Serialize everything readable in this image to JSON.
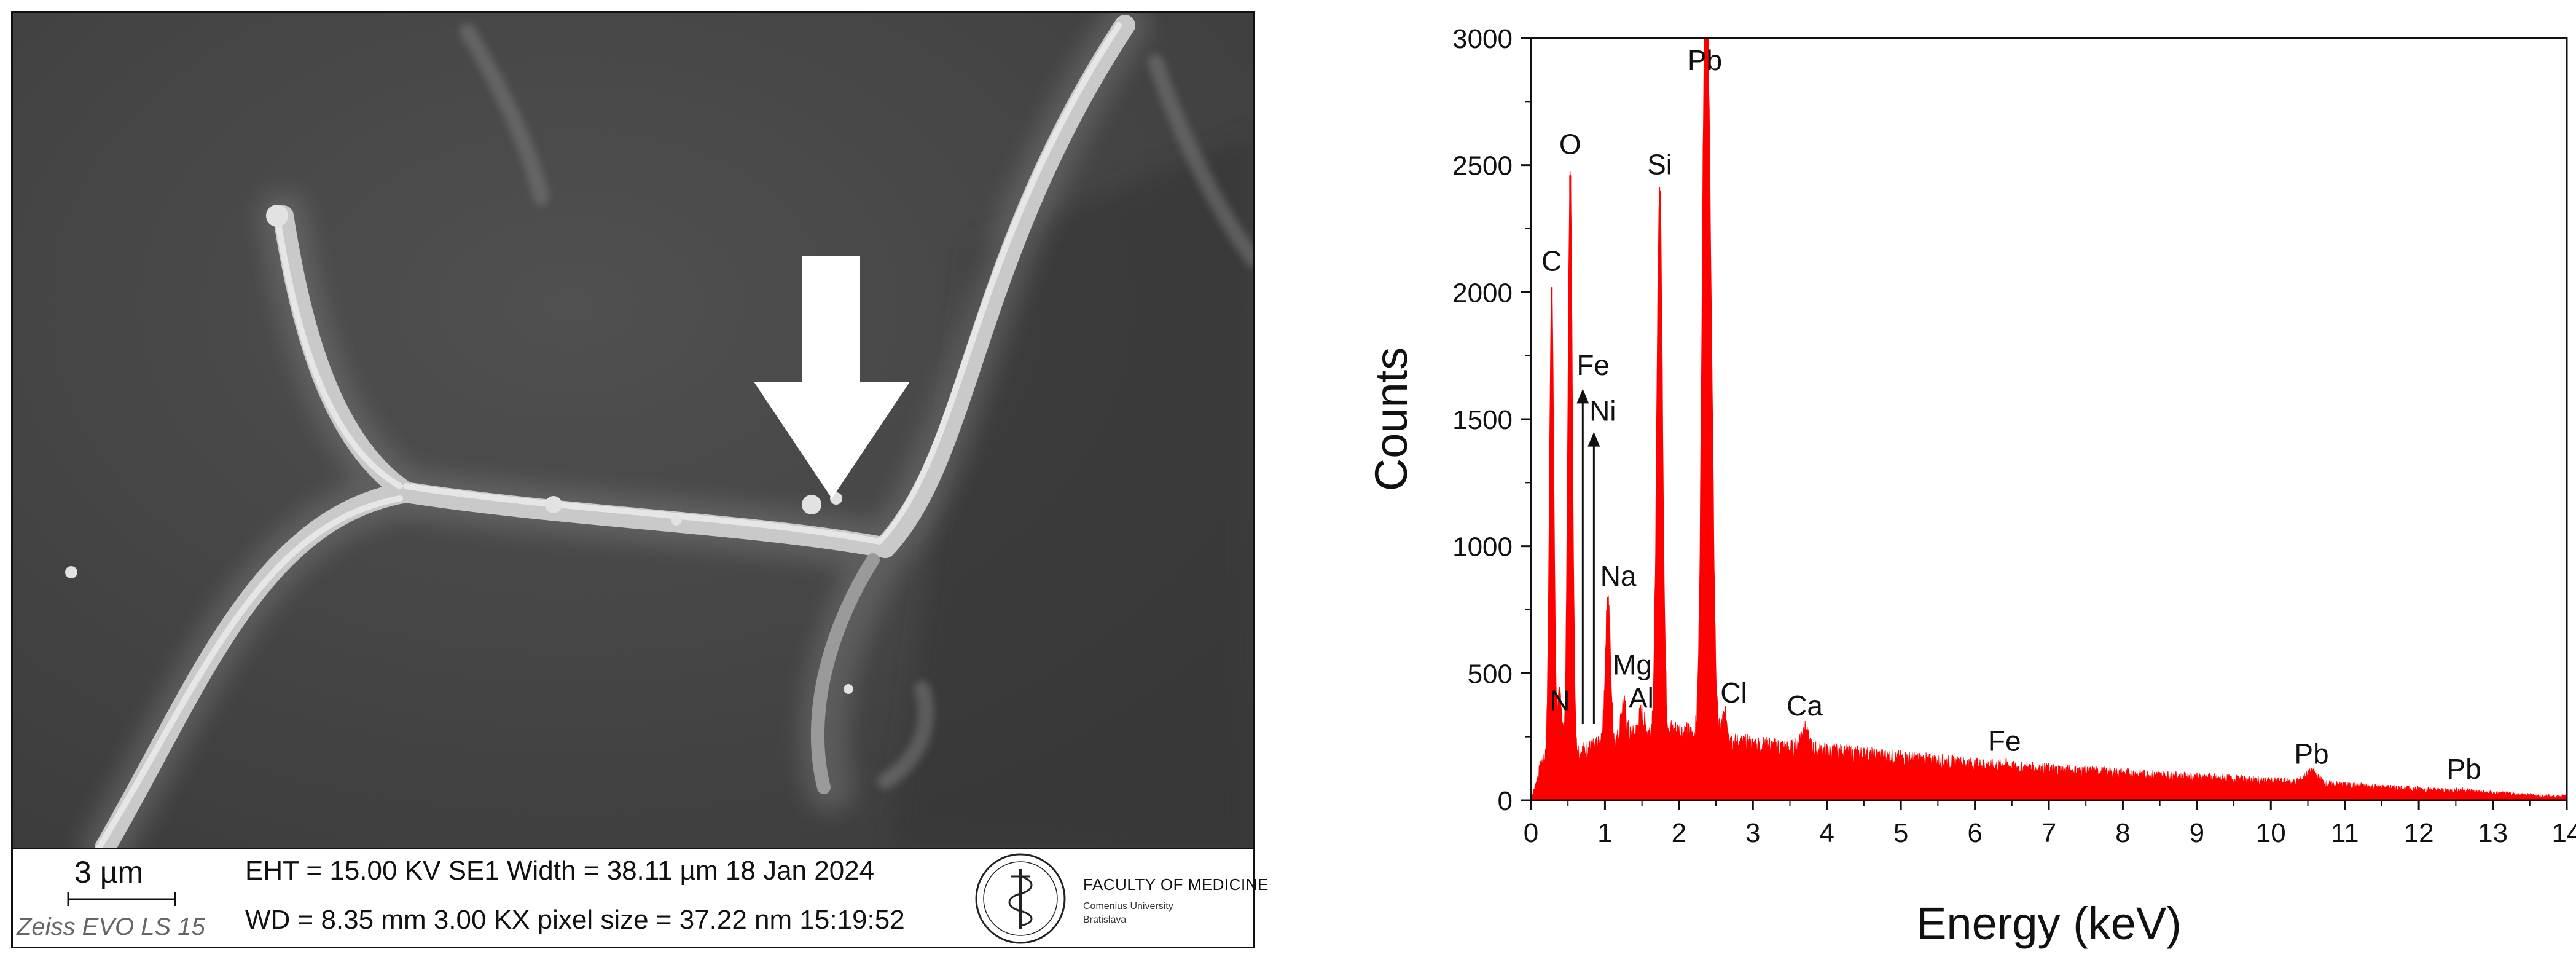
{
  "sem": {
    "scale_label": "3 µm",
    "instrument": "Zeiss EVO LS 15",
    "line1": "EHT = 15.00 KV   SE1  Width = 38.11 µm   18 Jan 2024",
    "line2": "WD = 8.35 mm 3.00 KX pixel size = 37.22 nm 15:19:52",
    "logo_name": "FACULTY OF MEDICINE",
    "logo_sub1": "Comenius University",
    "logo_sub2": "Bratislava",
    "arrow_icon": "down-arrow-icon",
    "image_tone": "#4a4a4a"
  },
  "chart_data": {
    "type": "area",
    "color": "#ff0000",
    "xlabel": "Energy (keV)",
    "ylabel": "Counts",
    "xlim": [
      0,
      14
    ],
    "ylim": [
      0,
      3000
    ],
    "xticks": [
      0,
      1,
      2,
      3,
      4,
      5,
      6,
      7,
      8,
      9,
      10,
      11,
      12,
      13,
      14
    ],
    "yticks": [
      0,
      500,
      1000,
      1500,
      2000,
      2500,
      3000
    ],
    "grid": false,
    "legend": "none",
    "peaks": [
      {
        "energy": 0.28,
        "counts": 2020
      },
      {
        "energy": 0.39,
        "counts": 420
      },
      {
        "energy": 0.53,
        "counts": 2460
      },
      {
        "energy": 1.04,
        "counts": 800
      },
      {
        "energy": 1.25,
        "counts": 380
      },
      {
        "energy": 1.49,
        "counts": 340
      },
      {
        "energy": 1.74,
        "counts": 2400
      },
      {
        "energy": 2.35,
        "counts": 2800
      },
      {
        "energy": 2.42,
        "counts": 1800
      },
      {
        "energy": 2.62,
        "counts": 330
      },
      {
        "energy": 3.69,
        "counts": 280
      },
      {
        "energy": 6.4,
        "counts": 140
      },
      {
        "energy": 10.55,
        "counts": 110
      },
      {
        "energy": 12.61,
        "counts": 40
      }
    ],
    "annotations": [
      {
        "text": "C",
        "x": 0.28,
        "y": 2060
      },
      {
        "text": "O",
        "x": 0.53,
        "y": 2520
      },
      {
        "text": "Si",
        "x": 1.74,
        "y": 2440
      },
      {
        "text": "Pb",
        "x": 2.35,
        "y": 2850
      },
      {
        "text": "N",
        "x": 0.39,
        "y": 330
      },
      {
        "text": "Na",
        "x": 1.18,
        "y": 820
      },
      {
        "text": "Mg",
        "x": 1.37,
        "y": 470
      },
      {
        "text": "Al",
        "x": 1.49,
        "y": 340
      },
      {
        "text": "Cl",
        "x": 2.74,
        "y": 360
      },
      {
        "text": "Ca",
        "x": 3.7,
        "y": 310
      },
      {
        "text": "Fe",
        "x": 6.4,
        "y": 170
      },
      {
        "text": "Pb",
        "x": 10.55,
        "y": 120
      },
      {
        "text": "Pb",
        "x": 12.61,
        "y": 60
      },
      {
        "text": "Fe",
        "x": 0.84,
        "y": 1650
      },
      {
        "text": "Ni",
        "x": 0.97,
        "y": 1470
      }
    ],
    "arrows": [
      {
        "label": "Fe",
        "x": 0.7,
        "from": 300,
        "to": 1620
      },
      {
        "label": "Ni",
        "x": 0.85,
        "from": 300,
        "to": 1450
      }
    ]
  }
}
